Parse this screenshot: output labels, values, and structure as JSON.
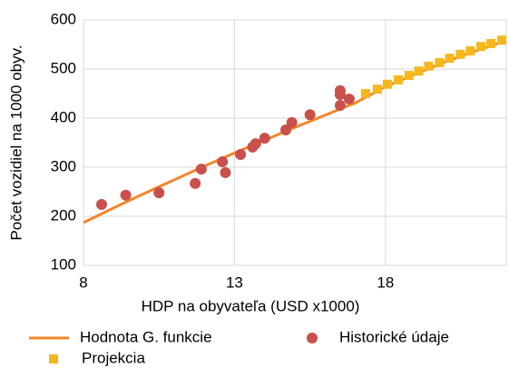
{
  "chart_data": {
    "type": "scatter",
    "x_label": "HDP na obyvateľa (USD x1000)",
    "y_label": "Počet vozidiel na 1000 obyv.",
    "xlim": [
      8,
      22
    ],
    "ylim": [
      100,
      600
    ],
    "xticks": [
      8,
      13,
      18
    ],
    "yticks": [
      100,
      200,
      300,
      400,
      500,
      600
    ],
    "grid": true,
    "series": [
      {
        "name": "Hodnota G. funkcie",
        "kind": "line",
        "color": "#f4862a",
        "x": [
          8,
          9,
          10,
          11,
          12,
          13,
          14,
          15,
          16,
          17,
          18,
          19,
          20,
          21,
          22
        ],
        "values": [
          187,
          217,
          246,
          274,
          302,
          329,
          355,
          381,
          406,
          431,
          464,
          490,
          515,
          537,
          558
        ]
      },
      {
        "name": "Historické údaje",
        "kind": "circle",
        "color": "#c9504b",
        "x": [
          8.6,
          9.4,
          10.5,
          11.7,
          11.9,
          12.6,
          12.7,
          13.2,
          13.6,
          13.7,
          14.0,
          14.7,
          14.9,
          15.5,
          16.5,
          16.5,
          16.5,
          16.8
        ],
        "values": [
          224,
          243,
          248,
          267,
          296,
          311,
          289,
          326,
          341,
          348,
          359,
          376,
          391,
          407,
          456,
          448,
          426,
          439
        ]
      },
      {
        "name": "Projekcia",
        "kind": "square",
        "color": "#f5b81c",
        "x": [
          17.34,
          17.73,
          18.06,
          18.42,
          18.78,
          19.1,
          19.43,
          19.79,
          20.12,
          20.48,
          20.81,
          21.16,
          21.49,
          21.85
        ],
        "values": [
          450,
          459,
          469,
          478,
          487,
          496,
          506,
          513,
          522,
          530,
          537,
          546,
          552,
          559
        ]
      }
    ]
  }
}
